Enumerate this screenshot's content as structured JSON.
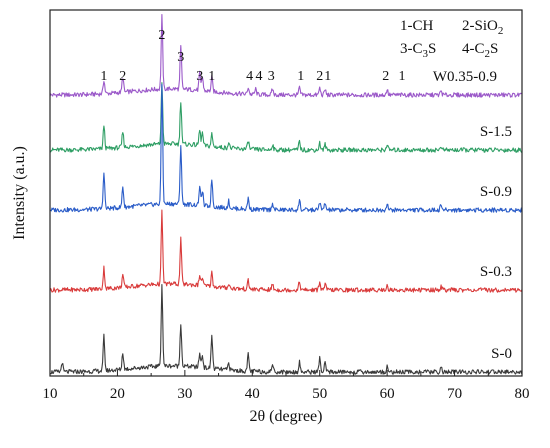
{
  "chart_data": {
    "type": "line",
    "xlabel": "2θ (degree)",
    "ylabel": "Intensity (a.u.)",
    "xlim": [
      10,
      80
    ],
    "x_ticks": [
      "10",
      "20",
      "30",
      "40",
      "50",
      "60",
      "70",
      "80"
    ],
    "grid": false,
    "legend_position": "top-right",
    "legend": [
      "1-CH",
      "2-SiO2",
      "3-C3S",
      "4-C2S"
    ],
    "series": [
      {
        "name": "W0.35-0.9",
        "color": "#9b59c9",
        "baseline": 0.5,
        "peaks": [
          [
            18.0,
            0.5
          ],
          [
            20.8,
            0.55
          ],
          [
            26.6,
            2.6
          ],
          [
            29.4,
            1.5
          ],
          [
            32.2,
            0.6
          ],
          [
            32.6,
            0.5
          ],
          [
            34.0,
            0.5
          ],
          [
            39.4,
            0.25
          ],
          [
            40.5,
            0.2
          ],
          [
            43.0,
            0.2
          ],
          [
            47.0,
            0.25
          ],
          [
            50.0,
            0.25
          ],
          [
            50.8,
            0.2
          ],
          [
            60.0,
            0.2
          ],
          [
            68.0,
            0.15
          ]
        ]
      },
      {
        "name": "S-1.5",
        "color": "#2e9e64",
        "baseline": 0.5,
        "peaks": [
          [
            18.0,
            0.85
          ],
          [
            20.8,
            0.55
          ],
          [
            26.6,
            2.2
          ],
          [
            29.4,
            1.55
          ],
          [
            32.2,
            0.55
          ],
          [
            32.6,
            0.45
          ],
          [
            34.0,
            0.45
          ],
          [
            36.5,
            0.2
          ],
          [
            39.4,
            0.3
          ],
          [
            43.0,
            0.2
          ],
          [
            47.0,
            0.3
          ],
          [
            50.0,
            0.25
          ],
          [
            50.8,
            0.2
          ],
          [
            60.0,
            0.2
          ],
          [
            68.0,
            0.15
          ]
        ]
      },
      {
        "name": "S-0.9",
        "color": "#2a5cc8",
        "baseline": 0.5,
        "peaks": [
          [
            18.0,
            1.35
          ],
          [
            20.8,
            0.75
          ],
          [
            26.6,
            4.3
          ],
          [
            29.4,
            2.1
          ],
          [
            32.2,
            0.65
          ],
          [
            32.6,
            0.55
          ],
          [
            34.0,
            1.0
          ],
          [
            36.5,
            0.25
          ],
          [
            39.4,
            0.4
          ],
          [
            43.0,
            0.25
          ],
          [
            47.0,
            0.35
          ],
          [
            50.0,
            0.3
          ],
          [
            50.8,
            0.25
          ],
          [
            60.0,
            0.25
          ],
          [
            68.0,
            0.2
          ]
        ]
      },
      {
        "name": "S-0.3",
        "color": "#d93b3b",
        "baseline": 0.5,
        "peaks": [
          [
            18.0,
            0.75
          ],
          [
            20.8,
            0.45
          ],
          [
            26.6,
            2.6
          ],
          [
            29.4,
            1.6
          ],
          [
            32.2,
            0.35
          ],
          [
            32.6,
            0.3
          ],
          [
            34.0,
            0.5
          ],
          [
            36.5,
            0.15
          ],
          [
            39.4,
            0.3
          ],
          [
            43.0,
            0.2
          ],
          [
            47.0,
            0.3
          ],
          [
            50.0,
            0.3
          ],
          [
            50.8,
            0.2
          ],
          [
            60.0,
            0.2
          ],
          [
            68.0,
            0.15
          ]
        ]
      },
      {
        "name": "S-0",
        "color": "#3a3a3a",
        "baseline": 0.5,
        "peaks": [
          [
            11.8,
            0.35
          ],
          [
            18.0,
            1.25
          ],
          [
            20.8,
            0.6
          ],
          [
            26.6,
            2.9
          ],
          [
            29.4,
            1.55
          ],
          [
            32.2,
            0.5
          ],
          [
            32.6,
            0.45
          ],
          [
            34.0,
            1.2
          ],
          [
            36.5,
            0.25
          ],
          [
            39.4,
            0.6
          ],
          [
            43.0,
            0.3
          ],
          [
            47.0,
            0.35
          ],
          [
            50.0,
            0.5
          ],
          [
            50.8,
            0.3
          ],
          [
            60.0,
            0.2
          ],
          [
            68.0,
            0.15
          ]
        ]
      }
    ],
    "peak_labels": [
      {
        "text": "1",
        "x": 18.0
      },
      {
        "text": "2",
        "x": 20.8
      },
      {
        "text": "2",
        "x": 26.6
      },
      {
        "text": "3",
        "x": 29.4
      },
      {
        "text": "3",
        "x": 32.2
      },
      {
        "text": "1",
        "x": 34.0
      },
      {
        "text": "4",
        "x": 39.6
      },
      {
        "text": "4",
        "x": 41.0
      },
      {
        "text": "3",
        "x": 42.8
      },
      {
        "text": "1",
        "x": 47.2
      },
      {
        "text": "2",
        "x": 50.0
      },
      {
        "text": "1",
        "x": 51.2
      },
      {
        "text": "2",
        "x": 59.8
      },
      {
        "text": "1",
        "x": 62.2
      }
    ]
  }
}
